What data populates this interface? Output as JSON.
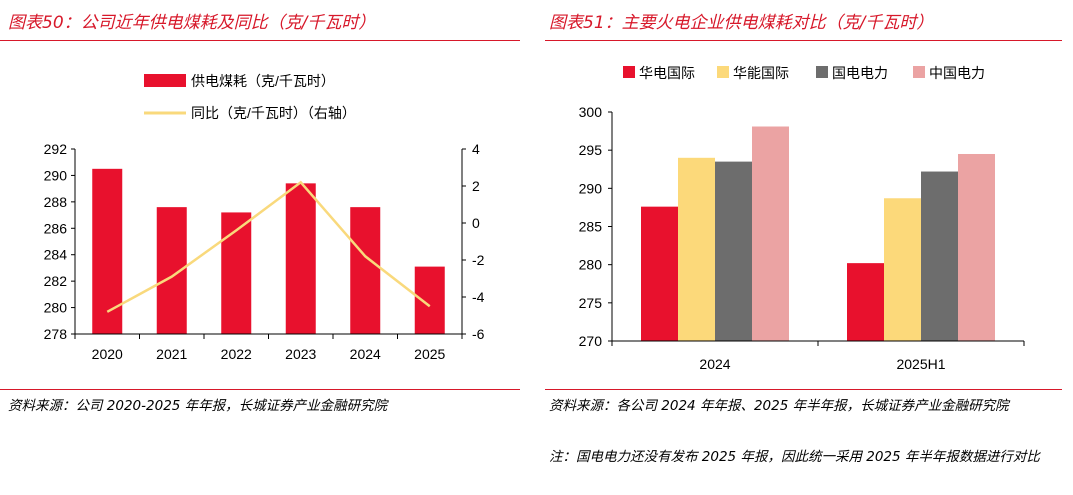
{
  "left": {
    "title": "图表50：公司近年供电煤耗及同比（克/千瓦时）",
    "source": "资料来源：公司 2020-2025 年年报，长城证券产业金融研究院"
  },
  "right": {
    "title": "图表51：主要火电企业供电煤耗对比（克/千瓦时）",
    "source": "资料来源：各公司 2024 年年报、2025 年半年报，长城证券产业金融研究院",
    "note": "注：国电电力还没有发布 2025 年报，因此统一采用 2025 年半年报数据进行对比"
  },
  "colors": {
    "red": "#e8112d",
    "yellow": "#fcd97a",
    "gray": "#6d6d6d",
    "pink": "#eba3a3",
    "line": "#f9d97c",
    "accent": "#d7182a"
  },
  "chart_data": [
    {
      "type": "bar",
      "title": "公司近年供电煤耗及同比（克/千瓦时）",
      "categories": [
        "2020",
        "2021",
        "2022",
        "2023",
        "2024",
        "2025"
      ],
      "ylim": [
        278,
        292
      ],
      "y_ticks": [
        "278",
        "280",
        "282",
        "284",
        "286",
        "288",
        "290",
        "292"
      ],
      "y2lim": [
        -6,
        4
      ],
      "y2_ticks": [
        "-6",
        "-4",
        "-2",
        "0",
        "2",
        "4"
      ],
      "series": [
        {
          "name": "供电煤耗（克/千瓦时）",
          "type": "bar",
          "values": [
            290.5,
            287.6,
            287.2,
            289.4,
            287.6,
            283.1
          ]
        },
        {
          "name": "同比（克/千瓦时）（右轴）",
          "type": "line",
          "axis": "right",
          "values": [
            -4.8,
            -2.9,
            -0.4,
            2.2,
            -1.8,
            -4.5
          ]
        }
      ],
      "legend_position": "top"
    },
    {
      "type": "bar",
      "title": "主要火电企业供电煤耗对比（克/千瓦时）",
      "categories": [
        "2024",
        "2025H1"
      ],
      "ylim": [
        270,
        300
      ],
      "y_ticks": [
        "270",
        "275",
        "280",
        "285",
        "290",
        "295",
        "300"
      ],
      "series": [
        {
          "name": "华电国际",
          "values": [
            287.6,
            280.2
          ]
        },
        {
          "name": "华能国际",
          "values": [
            294.0,
            288.7
          ]
        },
        {
          "name": "国电电力",
          "values": [
            293.5,
            292.2
          ]
        },
        {
          "name": "中国电力",
          "values": [
            298.1,
            294.5
          ]
        }
      ],
      "legend_position": "top"
    }
  ]
}
